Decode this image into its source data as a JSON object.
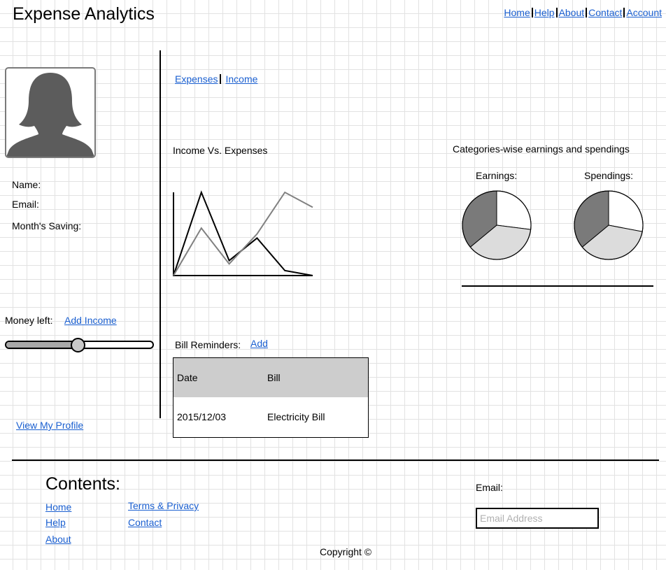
{
  "header": {
    "title": "Expense Analytics",
    "nav": [
      "Home",
      "Help",
      "About",
      "Contact",
      "Account"
    ]
  },
  "profile": {
    "avatar_icon": "female-user-silhouette-icon",
    "name_label": "Name:",
    "email_label": "Email:",
    "saving_label": "Month's Saving:",
    "money_left_label": "Money left:",
    "add_income_link": "Add Income",
    "money_left_fraction": 0.49,
    "view_profile_link": "View My Profile"
  },
  "tabs": [
    "Expenses",
    "Income"
  ],
  "income_chart": {
    "title": "Income Vs. Expenses"
  },
  "categories": {
    "title": "Categories-wise earnings and spendings",
    "earnings_label": "Earnings:",
    "spendings_label": "Spendings:"
  },
  "bills": {
    "label": "Bill Reminders:",
    "add_link": "Add",
    "columns": [
      "Date",
      "Bill"
    ],
    "rows": [
      [
        "2015/12/03",
        "Electricity Bill"
      ]
    ]
  },
  "footer": {
    "contents_title": "Contents:",
    "links_col1": [
      "Home",
      "Help",
      "About"
    ],
    "links_col2": [
      "Terms & Privacy",
      "Contact"
    ],
    "email_label": "Email:",
    "email_placeholder": "Email Address",
    "copyright": "Copyright ©"
  },
  "chart_data": [
    {
      "type": "line",
      "title": "Income Vs. Expenses",
      "x": [
        0,
        1,
        2,
        3,
        4,
        5
      ],
      "series": [
        {
          "color": "#000000",
          "values": [
            0,
            100,
            18,
            45,
            6,
            0
          ]
        },
        {
          "color": "#808080",
          "values": [
            0,
            57,
            14,
            50,
            100,
            82
          ]
        }
      ],
      "ylim": [
        0,
        100
      ],
      "grid": false
    },
    {
      "type": "pie",
      "title": "Earnings:",
      "values": [
        27,
        37,
        36
      ],
      "colors": [
        "#ffffff",
        "#dcdcdc",
        "#7a7a7a"
      ]
    },
    {
      "type": "pie",
      "title": "Spendings:",
      "values": [
        28,
        36,
        36
      ],
      "colors": [
        "#ffffff",
        "#dcdcdc",
        "#7a7a7a"
      ]
    }
  ]
}
